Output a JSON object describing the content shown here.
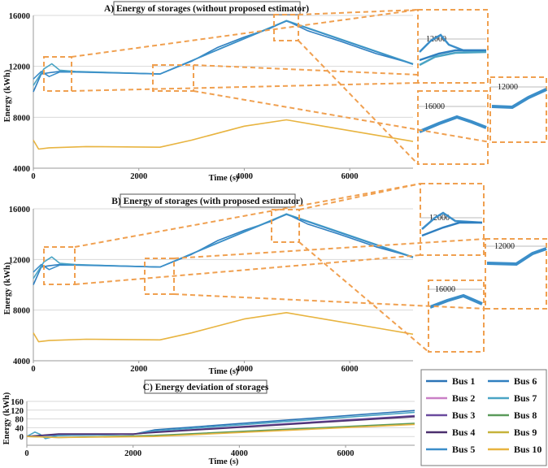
{
  "colors": {
    "zoom_dash": "#f0a050",
    "axis": "#999999",
    "grid": "#d9d9d9"
  },
  "legend": {
    "items": [
      {
        "label": "Bus 1",
        "color": "#2b74b6"
      },
      {
        "label": "Bus 2",
        "color": "#c97fc6"
      },
      {
        "label": "Bus 3",
        "color": "#6a4a9e"
      },
      {
        "label": "Bus 4",
        "color": "#4b2f6e"
      },
      {
        "label": "Bus 5",
        "color": "#3b8ec9"
      },
      {
        "label": "Bus 6",
        "color": "#2f7fc0"
      },
      {
        "label": "Bus 7",
        "color": "#4aa4c4"
      },
      {
        "label": "Bus 8",
        "color": "#5a9a5a"
      },
      {
        "label": "Bus 9",
        "color": "#c6b23a"
      },
      {
        "label": "Bus 10",
        "color": "#e8b440"
      }
    ]
  },
  "chart_data": [
    {
      "id": "A",
      "type": "line",
      "title": "A) Energy of storages (without proposed estimator)",
      "xlabel": "Time (s)",
      "ylabel": "Energy (kWh)",
      "xlim": [
        0,
        7200
      ],
      "ylim": [
        4000,
        16000
      ],
      "xticks": [
        0,
        2000,
        4000,
        6000
      ],
      "yticks": [
        4000,
        8000,
        12000,
        16000
      ],
      "series": [
        {
          "color": "#2f7fc0",
          "x": [
            0,
            150,
            300,
            500,
            1000,
            2000,
            2400,
            3000,
            3500,
            4000,
            4500,
            4800,
            5200,
            5800,
            6500,
            7200
          ],
          "y": [
            10000,
            11400,
            11500,
            11600,
            11550,
            11450,
            11400,
            12400,
            13500,
            14300,
            15000,
            15600,
            14800,
            14000,
            13000,
            12200
          ]
        },
        {
          "color": "#4aa4c4",
          "x": [
            0,
            200,
            350,
            500,
            800,
            2400,
            4800,
            7200
          ],
          "y": [
            10500,
            11800,
            12200,
            11700,
            11600,
            11400,
            15600,
            12200
          ]
        },
        {
          "color": "#3b8ec9",
          "x": [
            0,
            150,
            300,
            500,
            800,
            2400,
            4800,
            7200
          ],
          "y": [
            11000,
            11600,
            11200,
            11550,
            11550,
            11400,
            15550,
            12150
          ]
        },
        {
          "color": "#e8b440",
          "x": [
            0,
            100,
            300,
            1000,
            2400,
            3000,
            4000,
            4800,
            5500,
            6500,
            7200
          ],
          "y": [
            6200,
            5500,
            5600,
            5700,
            5650,
            6200,
            7300,
            7800,
            7300,
            6600,
            6100
          ]
        }
      ]
    },
    {
      "id": "B",
      "type": "line",
      "title": "B) Energy of storages (with proposed estimator)",
      "xlabel": "Time (s)",
      "ylabel": "Energy (kWh)",
      "xlim": [
        0,
        7200
      ],
      "ylim": [
        4000,
        16000
      ],
      "xticks": [
        0,
        2000,
        4000,
        6000
      ],
      "yticks": [
        4000,
        8000,
        12000,
        16000
      ],
      "series": [
        {
          "color": "#2f7fc0",
          "x": [
            0,
            150,
            300,
            500,
            1000,
            2000,
            2400,
            3000,
            3500,
            4000,
            4500,
            4800,
            5200,
            5800,
            6500,
            7200
          ],
          "y": [
            10000,
            11400,
            11500,
            11600,
            11550,
            11450,
            11400,
            12400,
            13500,
            14300,
            15000,
            15600,
            14800,
            14000,
            13000,
            12200
          ]
        },
        {
          "color": "#4aa4c4",
          "x": [
            0,
            200,
            350,
            500,
            800,
            2400,
            4800,
            7200
          ],
          "y": [
            10500,
            11800,
            12200,
            11700,
            11600,
            11400,
            15600,
            12200
          ]
        },
        {
          "color": "#3b8ec9",
          "x": [
            0,
            150,
            300,
            500,
            800,
            2400,
            4800,
            7200
          ],
          "y": [
            11000,
            11600,
            11200,
            11550,
            11550,
            11400,
            15550,
            12150
          ]
        },
        {
          "color": "#e8b440",
          "x": [
            0,
            100,
            300,
            1000,
            2400,
            3000,
            4000,
            4800,
            5500,
            6500,
            7200
          ],
          "y": [
            6200,
            5500,
            5600,
            5700,
            5650,
            6200,
            7300,
            7800,
            7300,
            6600,
            6100
          ]
        }
      ]
    },
    {
      "id": "C",
      "type": "line",
      "title": "C) Energy deviation of storages",
      "xlabel": "Time (s)",
      "ylabel": "Energy (kWh)",
      "xlim": [
        0,
        7300
      ],
      "ylim": [
        -40,
        160
      ],
      "xticks": [
        0,
        2000,
        4000,
        6000
      ],
      "yticks": [
        0,
        40,
        80,
        120,
        160
      ],
      "series": [
        {
          "color": "#2b74b6",
          "x": [
            0,
            300,
            600,
            2000,
            2400,
            7300
          ],
          "y": [
            0,
            5,
            5,
            10,
            30,
            118
          ]
        },
        {
          "color": "#4aa4c4",
          "x": [
            0,
            150,
            250,
            350,
            600,
            2000,
            2400,
            7300
          ],
          "y": [
            0,
            20,
            10,
            -10,
            5,
            10,
            25,
            110
          ]
        },
        {
          "color": "#6a4a9e",
          "x": [
            0,
            600,
            2000,
            2400,
            7300
          ],
          "y": [
            0,
            10,
            10,
            20,
            95
          ]
        },
        {
          "color": "#4b2f6e",
          "x": [
            0,
            600,
            2000,
            2400,
            7300
          ],
          "y": [
            0,
            12,
            12,
            18,
            90
          ]
        },
        {
          "color": "#5a9a5a",
          "x": [
            0,
            600,
            2400,
            7300
          ],
          "y": [
            0,
            -5,
            5,
            60
          ]
        },
        {
          "color": "#e8b440",
          "x": [
            0,
            600,
            2400,
            7300
          ],
          "y": [
            0,
            -5,
            0,
            55
          ]
        }
      ]
    }
  ],
  "zooms": {
    "A_inset1_tick": "12000",
    "A_inset2_tick": "16000",
    "A_inset3_tick": "12000",
    "B_inset1_tick": "12000",
    "B_inset2_tick": "16000",
    "B_inset3_tick": "12000"
  }
}
